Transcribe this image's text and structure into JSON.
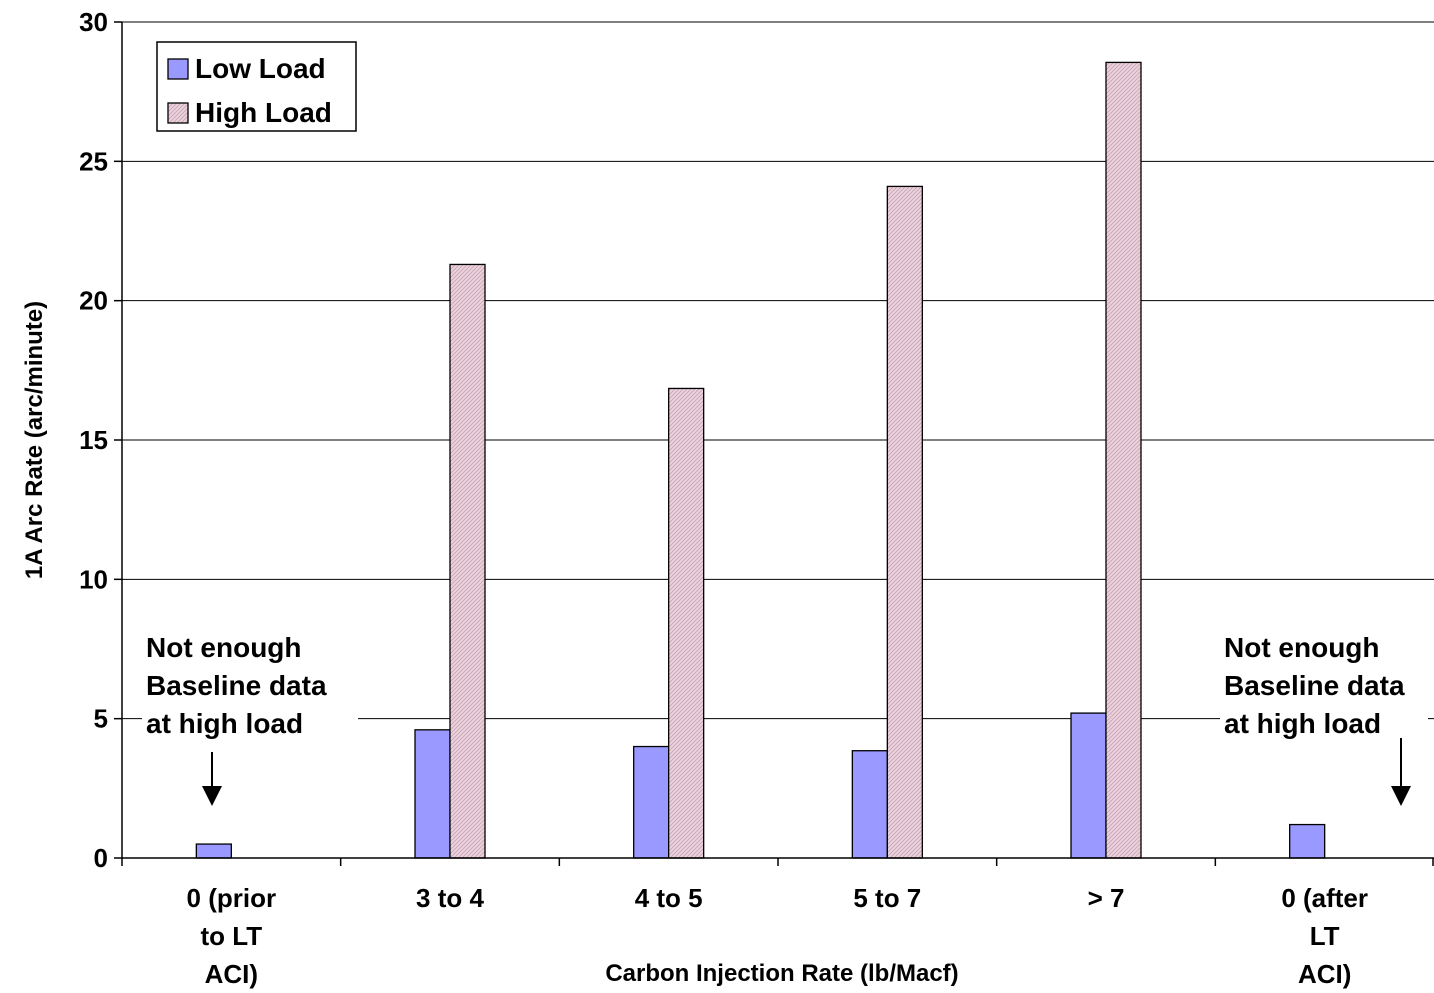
{
  "chart_data": {
    "type": "bar",
    "xlabel": "Carbon Injection Rate (lb/Macf)",
    "ylabel": "1A Arc Rate (arc/minute)",
    "ylim": [
      0,
      30
    ],
    "yticks": [
      0,
      5,
      10,
      15,
      20,
      25,
      30
    ],
    "grid": true,
    "legend_position": "top-left",
    "categories": [
      [
        "0 (prior",
        "to LT",
        "ACI)"
      ],
      [
        "3 to 4"
      ],
      [
        "4 to 5"
      ],
      [
        "5 to 7"
      ],
      [
        "> 7"
      ],
      [
        "0 (after",
        "LT",
        "ACI)"
      ]
    ],
    "series": [
      {
        "name": "Low Load",
        "color": "#9999ff",
        "values": [
          0.5,
          4.6,
          4.0,
          3.85,
          5.2,
          1.2
        ]
      },
      {
        "name": "High Load",
        "color": "#e8cdd8",
        "values": [
          null,
          21.3,
          16.85,
          24.1,
          28.55,
          null
        ]
      }
    ],
    "annotations": [
      {
        "category_index": 0,
        "lines": [
          "Not enough",
          "Baseline data",
          "at high load"
        ]
      },
      {
        "category_index": 5,
        "lines": [
          "Not enough",
          "Baseline data",
          "at high load"
        ]
      }
    ]
  }
}
